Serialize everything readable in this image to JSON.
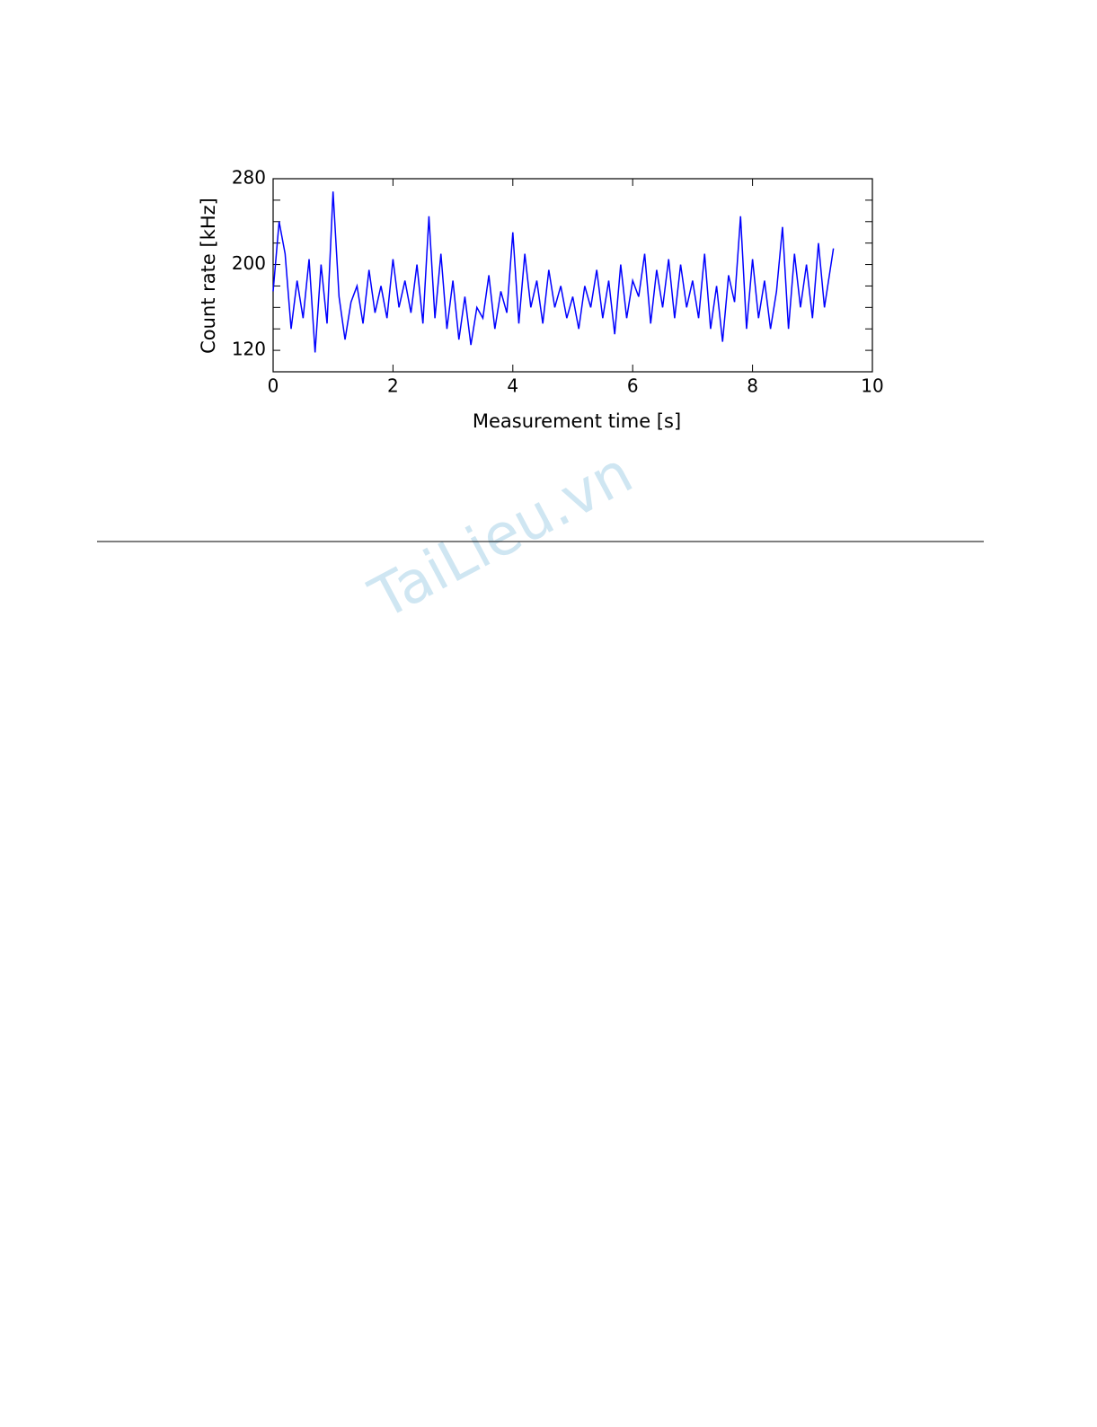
{
  "chart_data": {
    "type": "line",
    "ylabel": "Count rate [kHz]",
    "xlabel": "Measurement time [s]",
    "xlim": [
      0,
      10
    ],
    "xticks": [
      0,
      2,
      4,
      6,
      8,
      10
    ],
    "ylim": [
      100,
      280
    ],
    "yticks": [
      120,
      200,
      280
    ],
    "y_minor_ticks": [
      140,
      160,
      180,
      220,
      240,
      260
    ],
    "color": "#0000ff",
    "x": [
      0.0,
      0.1,
      0.2,
      0.3,
      0.4,
      0.5,
      0.6,
      0.7,
      0.8,
      0.9,
      1.0,
      1.1,
      1.2,
      1.3,
      1.4,
      1.5,
      1.6,
      1.7,
      1.8,
      1.9,
      2.0,
      2.1,
      2.2,
      2.3,
      2.4,
      2.5,
      2.6,
      2.7,
      2.8,
      2.9,
      3.0,
      3.1,
      3.2,
      3.3,
      3.4,
      3.5,
      3.6,
      3.7,
      3.8,
      3.9,
      4.0,
      4.1,
      4.2,
      4.3,
      4.4,
      4.5,
      4.6,
      4.7,
      4.8,
      4.9,
      5.0,
      5.1,
      5.2,
      5.3,
      5.4,
      5.5,
      5.6,
      5.7,
      5.8,
      5.9,
      6.0,
      6.1,
      6.2,
      6.3,
      6.4,
      6.5,
      6.6,
      6.7,
      6.8,
      6.9,
      7.0,
      7.1,
      7.2,
      7.3,
      7.4,
      7.5,
      7.6,
      7.7,
      7.8,
      7.9,
      8.0,
      8.1,
      8.2,
      8.3,
      8.4,
      8.5,
      8.6,
      8.7,
      8.8,
      8.9,
      9.0,
      9.1,
      9.2,
      9.35
    ],
    "values": [
      175,
      240,
      210,
      140,
      185,
      150,
      205,
      118,
      200,
      145,
      268,
      170,
      130,
      165,
      180,
      145,
      195,
      155,
      180,
      150,
      205,
      160,
      185,
      155,
      200,
      145,
      245,
      150,
      210,
      140,
      185,
      130,
      170,
      125,
      160,
      150,
      190,
      140,
      175,
      155,
      230,
      145,
      210,
      160,
      185,
      145,
      195,
      160,
      180,
      150,
      170,
      140,
      180,
      160,
      195,
      150,
      185,
      135,
      200,
      150,
      185,
      170,
      210,
      145,
      195,
      160,
      205,
      150,
      200,
      160,
      185,
      150,
      210,
      140,
      180,
      128,
      190,
      165,
      245,
      140,
      205,
      150,
      185,
      140,
      175,
      235,
      140,
      210,
      160,
      200,
      150,
      220,
      160,
      215
    ]
  },
  "watermark": "TaiLieu.vn"
}
